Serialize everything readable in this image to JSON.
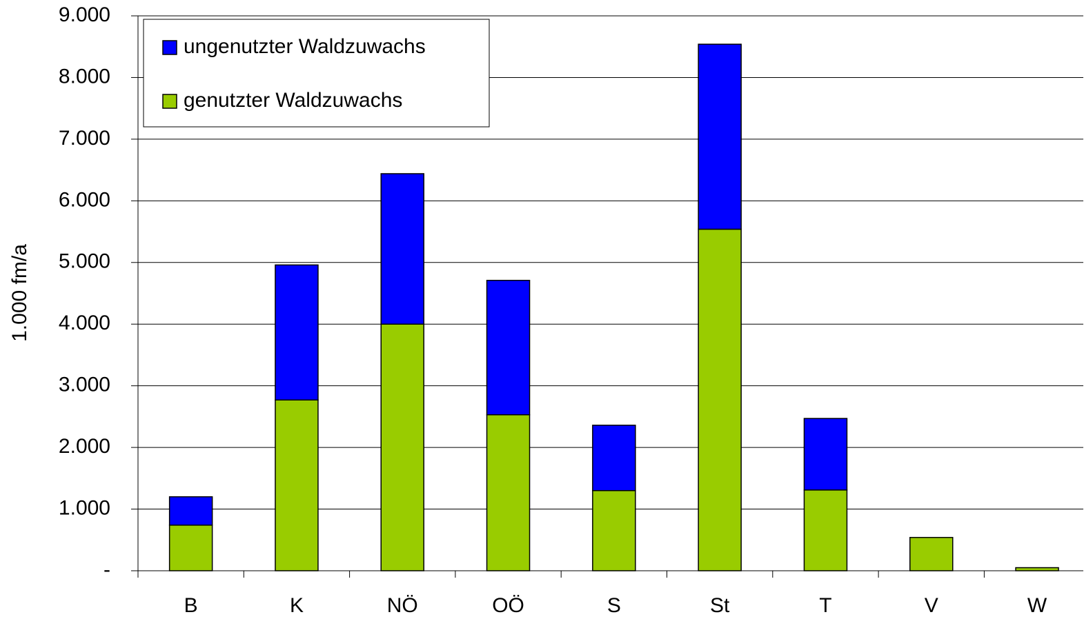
{
  "chart_data": {
    "type": "stacked_bar",
    "ylabel": "1.000 fm/a",
    "categories": [
      "B",
      "K",
      "NÖ",
      "OÖ",
      "S",
      "St",
      "T",
      "V",
      "W"
    ],
    "series": [
      {
        "name": "genutzter Waldzuwachs",
        "color": "#99cc00",
        "values": [
          740,
          2770,
          4000,
          2530,
          1300,
          5540,
          1310,
          540,
          50
        ]
      },
      {
        "name": "ungenutzter Waldzuwachs",
        "color": "#0000ff",
        "values": [
          460,
          2190,
          2440,
          2180,
          1060,
          3000,
          1160,
          0,
          0
        ]
      }
    ],
    "ylim": [
      0,
      9000
    ],
    "yticks": [
      {
        "value": 0,
        "label": "-"
      },
      {
        "value": 1000,
        "label": "1.000"
      },
      {
        "value": 2000,
        "label": "2.000"
      },
      {
        "value": 3000,
        "label": "3.000"
      },
      {
        "value": 4000,
        "label": "4.000"
      },
      {
        "value": 5000,
        "label": "5.000"
      },
      {
        "value": 6000,
        "label": "6.000"
      },
      {
        "value": 7000,
        "label": "7.000"
      },
      {
        "value": 8000,
        "label": "8.000"
      },
      {
        "value": 9000,
        "label": "9.000"
      }
    ],
    "grid": true,
    "legend": "upper left"
  }
}
